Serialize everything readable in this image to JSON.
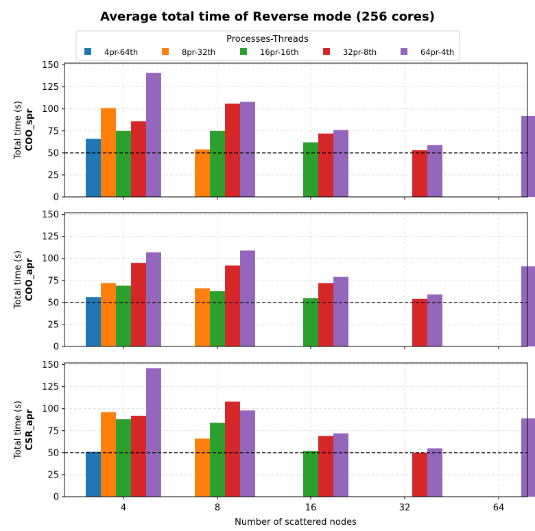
{
  "chart_data": {
    "type": "bar",
    "title": "Average total time of Reverse mode (256 cores)",
    "xlabel": "Number of scattered nodes",
    "ylabel": "Total time (s)",
    "categories": [
      "4",
      "8",
      "16",
      "32",
      "64"
    ],
    "legend": {
      "title": "Processes-Threads",
      "placement": "top-center",
      "entries": [
        "4pr-64th",
        "8pr-32th",
        "16pr-16th",
        "32pr-8th",
        "64pr-4th"
      ]
    },
    "colors": [
      "#1f77b4",
      "#ff7f0e",
      "#2ca02c",
      "#d62728",
      "#9467bd"
    ],
    "reference_line": {
      "y": 50,
      "style": "dashed",
      "color": "#000000"
    },
    "ylim": [
      0,
      152
    ],
    "yticks": [
      0,
      25,
      50,
      75,
      100,
      125,
      150
    ],
    "grid": true,
    "panels": [
      {
        "name": "COO_spr",
        "series": [
          {
            "name": "4pr-64th",
            "values": [
              66,
              null,
              null,
              null,
              null
            ]
          },
          {
            "name": "8pr-32th",
            "values": [
              101,
              54,
              null,
              null,
              null
            ]
          },
          {
            "name": "16pr-16th",
            "values": [
              75,
              75,
              62,
              null,
              null
            ]
          },
          {
            "name": "32pr-8th",
            "values": [
              86,
              106,
              72,
              53,
              null
            ]
          },
          {
            "name": "64pr-4th",
            "values": [
              141,
              108,
              76,
              59,
              92
            ]
          }
        ]
      },
      {
        "name": "COO_apr",
        "series": [
          {
            "name": "4pr-64th",
            "values": [
              56,
              null,
              null,
              null,
              null
            ]
          },
          {
            "name": "8pr-32th",
            "values": [
              72,
              66,
              null,
              null,
              null
            ]
          },
          {
            "name": "16pr-16th",
            "values": [
              69,
              63,
              55,
              null,
              null
            ]
          },
          {
            "name": "32pr-8th",
            "values": [
              95,
              92,
              72,
              54,
              null
            ]
          },
          {
            "name": "64pr-4th",
            "values": [
              107,
              109,
              79,
              59,
              91
            ]
          }
        ]
      },
      {
        "name": "CSR_apr",
        "series": [
          {
            "name": "4pr-64th",
            "values": [
              51,
              null,
              null,
              null,
              null
            ]
          },
          {
            "name": "8pr-32th",
            "values": [
              96,
              66,
              null,
              null,
              null
            ]
          },
          {
            "name": "16pr-16th",
            "values": [
              88,
              84,
              52,
              null,
              null
            ]
          },
          {
            "name": "32pr-8th",
            "values": [
              92,
              108,
              69,
              50,
              null
            ]
          },
          {
            "name": "64pr-4th",
            "values": [
              146,
              98,
              72,
              55,
              89
            ]
          }
        ]
      }
    ]
  }
}
